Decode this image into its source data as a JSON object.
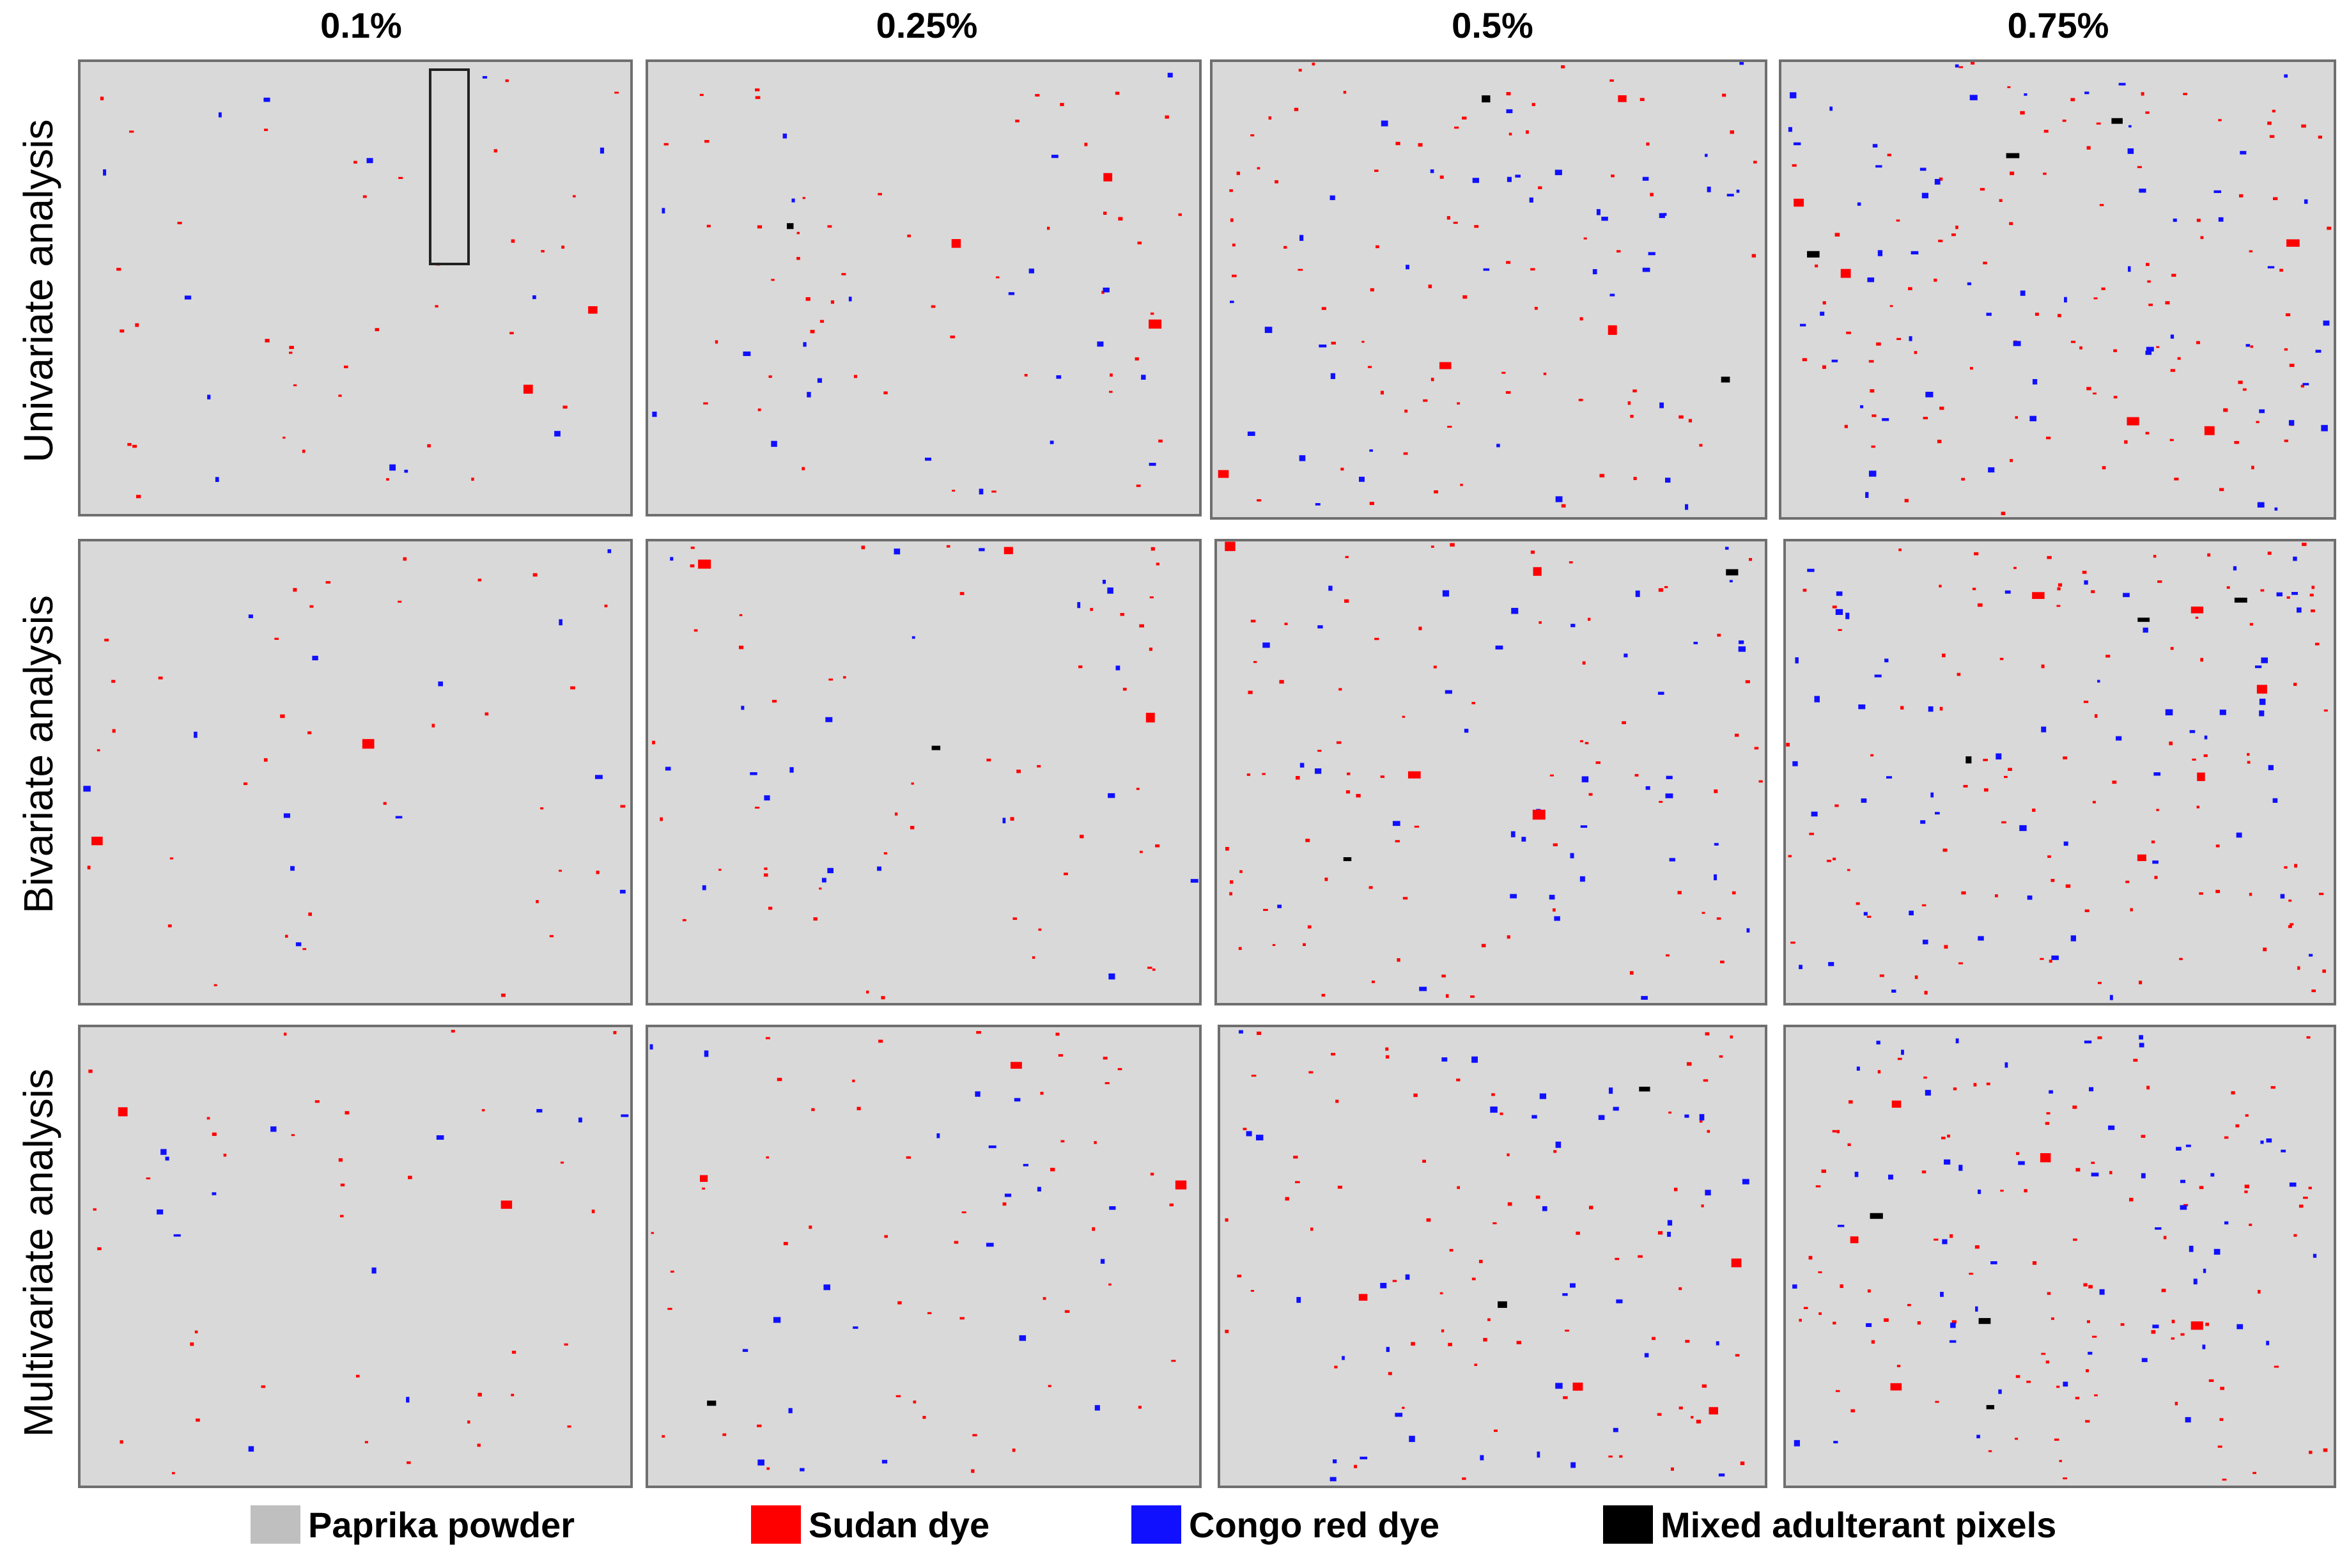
{
  "columns": [
    "0.1%",
    "0.25%",
    "0.5%",
    "0.75%"
  ],
  "rows": [
    "Univariate analysis",
    "Bivariate analysis",
    "Multivariate analysis"
  ],
  "legend": [
    {
      "label": "Paprika powder",
      "color": "#bfbfbf"
    },
    {
      "label": "Sudan dye",
      "color": "#ff0000"
    },
    {
      "label": "Congo red dye",
      "color": "#1010ff"
    },
    {
      "label": "Mixed adulterant pixels",
      "color": "#000000"
    }
  ],
  "colors": {
    "background": "#d9d9d9",
    "border": "#6f6f6f"
  }
}
